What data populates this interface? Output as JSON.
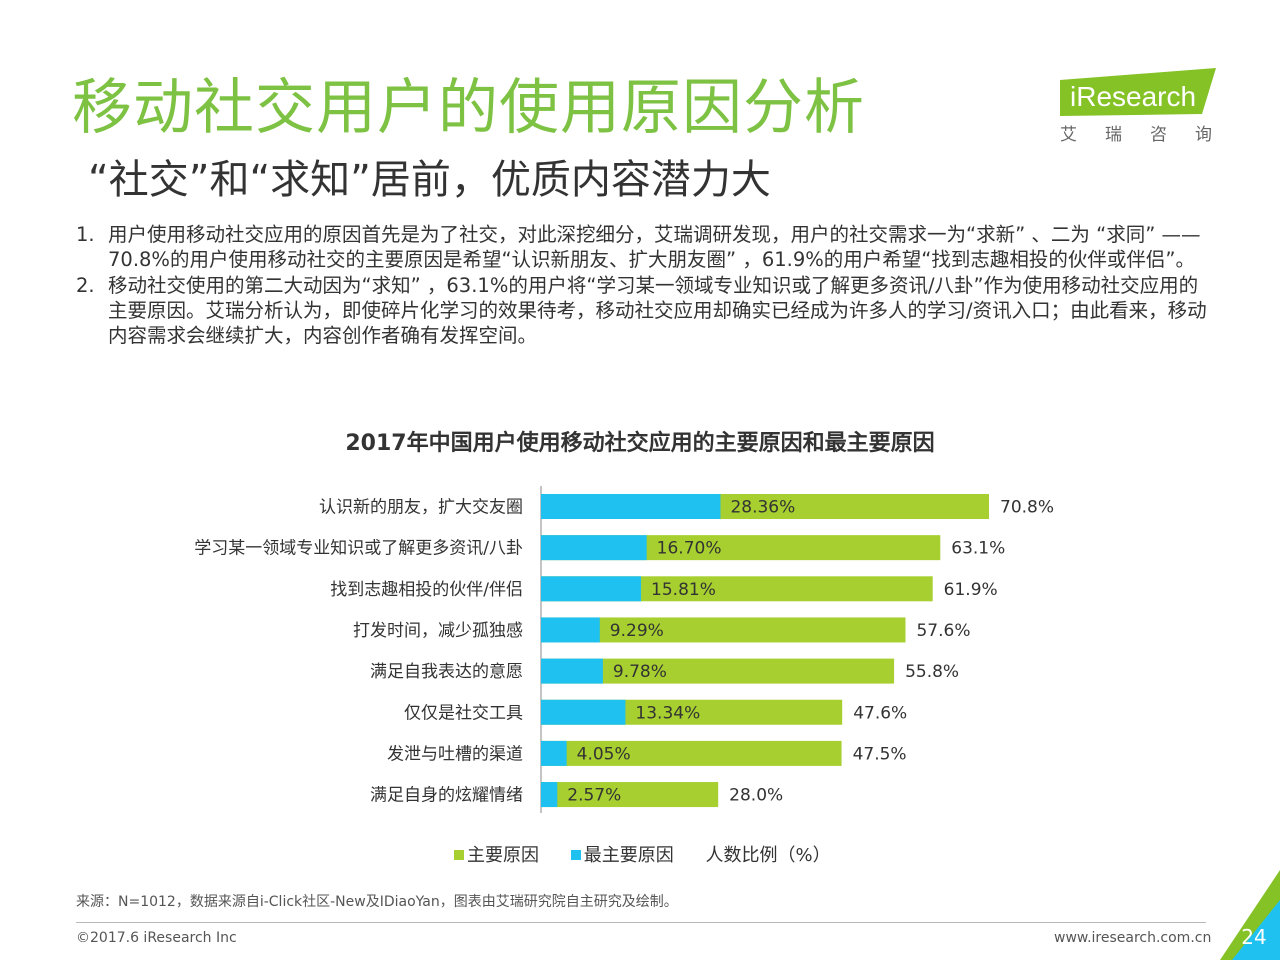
{
  "header": {
    "title": "移动社交用户的使用原因分析",
    "subtitle": "“社交”和“求知”居前，优质内容潜力大"
  },
  "logo": {
    "brand": "iResearch",
    "cn": "艾瑞咨询"
  },
  "points": [
    {
      "num": "1.",
      "text": "用户使用移动社交应用的原因首先是为了社交，对此深挖细分，艾瑞调研发现，用户的社交需求一为“求新” 、二为 “求同” ——70.8%的用户使用移动社交的主要原因是希望“认识新朋友、扩大朋友圈” ，61.9%的用户希望“找到志趣相投的伙伴或伴侣”。"
    },
    {
      "num": "2.",
      "text": "移动社交使用的第二大动因为“求知” ，63.1%的用户将“学习某一领域专业知识或了解更多资讯/八卦”作为使用移动社交应用的主要原因。艾瑞分析认为，即使碎片化学习的效果待考，移动社交应用却确实已经成为许多人的学习/资讯入口；由此看来，移动内容需求会继续扩大，内容创作者确有发挥空间。"
    }
  ],
  "chart_data": {
    "type": "bar",
    "orientation": "horizontal",
    "title": "2017年中国用户使用移动社交应用的主要原因和最主要原因",
    "categories": [
      "认识新的朋友，扩大交友圈",
      "学习某一领域专业知识或了解更多资讯/八卦",
      "找到志趣相投的伙伴/伴侣",
      "打发时间，减少孤独感",
      "满足自我表达的意愿",
      "仅仅是社交工具",
      "发泄与吐槽的渠道",
      "满足自身的炫耀情绪"
    ],
    "series": [
      {
        "name": "主要原因",
        "color": "#a6cf2f",
        "values": [
          70.8,
          63.1,
          61.9,
          57.6,
          55.8,
          47.6,
          47.5,
          28.0
        ],
        "labels": [
          "70.8%",
          "63.1%",
          "61.9%",
          "57.6%",
          "55.8%",
          "47.6%",
          "47.5%",
          "28.0%"
        ]
      },
      {
        "name": "最主要原因",
        "color": "#1ec1ef",
        "values": [
          28.36,
          16.7,
          15.81,
          9.29,
          9.78,
          13.34,
          4.05,
          2.57
        ],
        "labels": [
          "28.36%",
          "16.70%",
          "15.81%",
          "9.29%",
          "9.78%",
          "13.34%",
          "4.05%",
          "2.57%"
        ]
      }
    ],
    "unit_label": "人数比例（%）",
    "xlim": [
      0,
      100
    ],
    "grid": false,
    "legend_position": "bottom"
  },
  "footer": {
    "source": "来源：N=1012，数据来源自i-Click社区-New及IDiaoYan，图表由艾瑞研究院自主研究及绘制。",
    "copyright": "©2017.6 iResearch Inc",
    "website": "www.iresearch.com.cn",
    "page": "24"
  }
}
